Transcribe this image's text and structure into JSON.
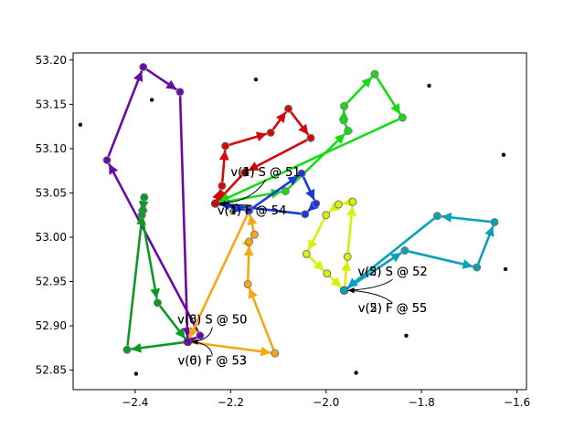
{
  "chart_data": {
    "type": "scatter",
    "xlim": [
      -2.53,
      -1.58
    ],
    "ylim": [
      52.828,
      53.208
    ],
    "xticks": [
      -2.4,
      -2.2,
      -2.0,
      -1.8,
      -1.6
    ],
    "yticks": [
      52.85,
      52.9,
      52.95,
      53.0,
      53.05,
      53.1,
      53.15,
      53.2
    ],
    "xtick_labels": [
      "−2.4",
      "−2.2",
      "−2.0",
      "−1.8",
      "−1.6"
    ],
    "ytick_labels": [
      "52.85",
      "52.90",
      "52.95",
      "53.00",
      "53.05",
      "53.10",
      "53.15",
      "53.20"
    ],
    "grid": false,
    "depots": [
      {
        "x": -2.29,
        "y": 52.882
      },
      {
        "x": -2.232,
        "y": 53.038
      },
      {
        "x": -1.962,
        "y": 52.94
      }
    ],
    "background_points": [
      {
        "x": -2.515,
        "y": 53.127
      },
      {
        "x": -2.365,
        "y": 53.155
      },
      {
        "x": -2.147,
        "y": 53.178
      },
      {
        "x": -1.784,
        "y": 53.171
      },
      {
        "x": -1.628,
        "y": 53.093
      },
      {
        "x": -1.624,
        "y": 52.964
      },
      {
        "x": -1.832,
        "y": 52.889
      },
      {
        "x": -1.937,
        "y": 52.847
      },
      {
        "x": -2.398,
        "y": 52.846
      }
    ],
    "series": [
      {
        "color": "#6a0aa6",
        "start_depot": 0,
        "end_depot": 0,
        "points": [
          [
            -2.264,
            52.889
          ],
          [
            -2.459,
            53.087
          ],
          [
            -2.383,
            53.192
          ],
          [
            -2.306,
            53.164
          ]
        ]
      },
      {
        "color": "#0c9a24",
        "start_depot": 0,
        "end_depot": 0,
        "points": [
          [
            -2.417,
            52.873
          ],
          [
            -2.384,
            53.03
          ],
          [
            -2.381,
            53.045
          ],
          [
            -2.386,
            53.025
          ],
          [
            -2.353,
            52.926
          ]
        ]
      },
      {
        "color": "#f5a814",
        "start_depot": 0,
        "end_depot": 0,
        "points": [
          [
            -2.107,
            52.869
          ],
          [
            -2.164,
            52.947
          ],
          [
            -2.161,
            52.995
          ],
          [
            -2.15,
            53.003
          ],
          [
            -2.161,
            53.03
          ]
        ]
      },
      {
        "color": "#d40808",
        "start_depot": 1,
        "end_depot": 1,
        "points": [
          [
            -2.218,
            53.058
          ],
          [
            -2.211,
            53.103
          ],
          [
            -2.116,
            53.118
          ],
          [
            -2.079,
            53.145
          ],
          [
            -2.032,
            53.112
          ],
          [
            -2.171,
            53.073
          ]
        ]
      },
      {
        "color": "#16dc16",
        "start_depot": 1,
        "end_depot": 1,
        "points": [
          [
            -2.085,
            53.052
          ],
          [
            -1.954,
            53.12
          ],
          [
            -1.963,
            53.132
          ],
          [
            -1.962,
            53.148
          ],
          [
            -1.898,
            53.184
          ],
          [
            -1.84,
            53.135
          ]
        ]
      },
      {
        "color": "#1c38d8",
        "start_depot": 1,
        "end_depot": 1,
        "points": [
          [
            -2.162,
            53.03
          ],
          [
            -2.051,
            53.072
          ],
          [
            -2.021,
            53.038
          ],
          [
            -2.044,
            53.026
          ]
        ]
      },
      {
        "color": "#0aa0b8",
        "start_depot": 2,
        "end_depot": 2,
        "points": [
          [
            -1.835,
            52.985
          ],
          [
            -1.684,
            52.966
          ],
          [
            -1.647,
            53.017
          ],
          [
            -1.767,
            53.024
          ]
        ]
      },
      {
        "color": "#d6f20a",
        "start_depot": 2,
        "end_depot": 2,
        "points": [
          [
            -1.955,
            52.978
          ],
          [
            -1.944,
            53.04
          ],
          [
            -1.974,
            53.037
          ],
          [
            -2.0,
            53.025
          ],
          [
            -2.041,
            52.981
          ],
          [
            -1.998,
            52.959
          ]
        ]
      }
    ],
    "annotations": [
      {
        "text": "v(6) S @ 50",
        "x": -2.29,
        "y": 52.882
      },
      {
        "text": "v(0) S @ 50",
        "x": -2.29,
        "y": 52.882
      },
      {
        "text": "v(6) F @ 53",
        "x": -2.29,
        "y": 52.882
      },
      {
        "text": "v(0) F @ 53",
        "x": -2.29,
        "y": 52.882
      },
      {
        "text": "v(1) S @ 51",
        "x": -2.232,
        "y": 53.038
      },
      {
        "text": "v(4) S @ 51",
        "x": -2.232,
        "y": 53.038
      },
      {
        "text": "v(1) F @ 54",
        "x": -2.232,
        "y": 53.038
      },
      {
        "text": "v(4) F @ 54",
        "x": -2.232,
        "y": 53.038
      },
      {
        "text": "v(2) S @ 52",
        "x": -1.962,
        "y": 52.94
      },
      {
        "text": "v(5) S @ 52",
        "x": -1.962,
        "y": 52.94
      },
      {
        "text": "v(2) F @ 55",
        "x": -1.962,
        "y": 52.94
      },
      {
        "text": "v(5) F @ 55",
        "x": -1.962,
        "y": 52.94
      }
    ]
  }
}
